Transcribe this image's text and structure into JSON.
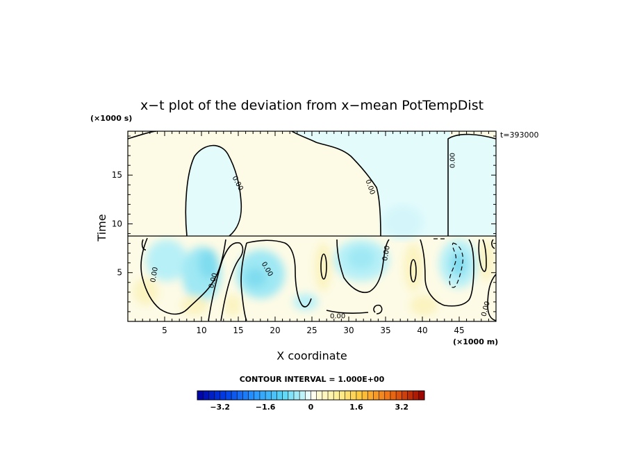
{
  "chart_data": {
    "type": "heatmap",
    "title": "x−t plot of the deviation from x−mean PotTempDist",
    "xlabel": "X coordinate",
    "ylabel": "Time",
    "x_unit": "(×1000 m)",
    "y_unit": "(×1000 s)",
    "time_stamp": "t=393000",
    "xlim": [
      0,
      50
    ],
    "ylim": [
      0,
      19.5
    ],
    "x_ticks": [
      5,
      10,
      15,
      20,
      25,
      30,
      35,
      40,
      45
    ],
    "y_ticks": [
      5,
      10,
      15
    ],
    "contour_interval_text": "CONTOUR INTERVAL = 1.000E+00",
    "contour_labels": [
      {
        "x": 3.5,
        "y": 4.8,
        "text": "0.00",
        "angle": -80
      },
      {
        "x": 11.5,
        "y": 4.2,
        "text": "0.00",
        "angle": -75
      },
      {
        "x": 15.0,
        "y": 14.2,
        "text": "0.00",
        "angle": 62
      },
      {
        "x": 19.0,
        "y": 5.4,
        "text": "0.00",
        "angle": 60
      },
      {
        "x": 33.0,
        "y": 13.8,
        "text": "0.00",
        "angle": 70
      },
      {
        "x": 35.0,
        "y": 7.0,
        "text": "0.00",
        "angle": -80
      },
      {
        "x": 28.5,
        "y": 0.6,
        "text": "0.00",
        "angle": 0
      },
      {
        "x": 44.0,
        "y": 16.5,
        "text": "0.00",
        "angle": -90
      },
      {
        "x": 48.5,
        "y": 1.3,
        "text": "0.00",
        "angle": -75
      }
    ],
    "colorbar": {
      "min": -4,
      "max": 4,
      "tick_values": [
        -3.2,
        -1.6,
        0,
        1.6,
        3.2
      ],
      "tick_labels": [
        "−3.2",
        "−1.6",
        "0",
        "1.6",
        "3.2"
      ]
    },
    "colors": {
      "positive_weak": "#fdfbe6",
      "positive_mid": "#fbf3c0",
      "negative_weak": "#e4fbfc",
      "negative_mid": "#b8f0f7",
      "negative_strong": "#7fdcef"
    }
  }
}
